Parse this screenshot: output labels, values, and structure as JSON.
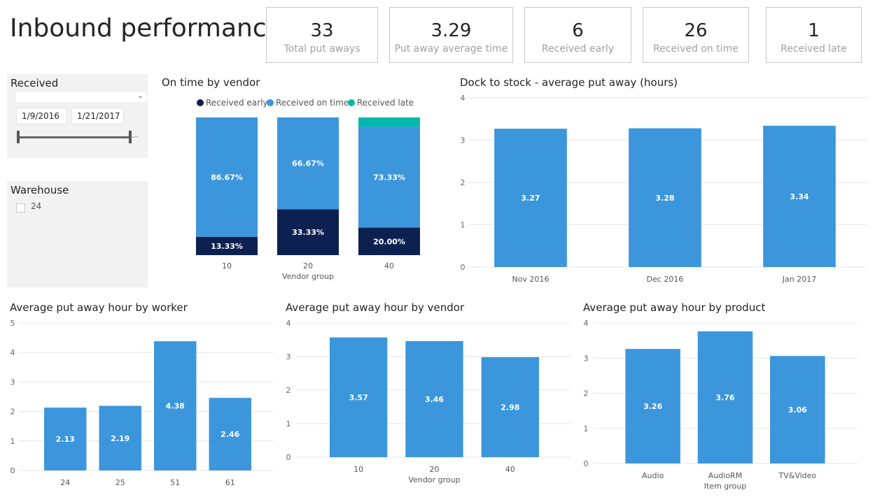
{
  "page": {
    "title": "Inbound performance"
  },
  "kpis": [
    {
      "value": "33",
      "label": "Total put aways"
    },
    {
      "value": "3.29",
      "label": "Put away average time"
    },
    {
      "value": "6",
      "label": "Received early"
    },
    {
      "value": "26",
      "label": "Received on time"
    },
    {
      "value": "1",
      "label": "Received late"
    }
  ],
  "slicers": {
    "received": {
      "title": "Received",
      "start_date": "1/9/2016",
      "end_date": "1/21/2017"
    },
    "warehouse": {
      "title": "Warehouse",
      "option": "24"
    }
  },
  "colors": {
    "bar": "#3c96dc",
    "early": "#0d2150",
    "on_time": "#3c96dc",
    "late": "#01b8aa"
  },
  "chart_data": [
    {
      "id": "on-time-by-vendor",
      "type": "bar",
      "stacked": true,
      "percent": true,
      "title": "On time by vendor",
      "xlabel": "Vendor group",
      "categories": [
        "10",
        "20",
        "40"
      ],
      "series": [
        {
          "name": "Received early",
          "values": [
            13.33,
            33.33,
            20.0
          ],
          "labels": [
            "13.33%",
            "33.33%",
            "20.00%"
          ]
        },
        {
          "name": "Received on time",
          "values": [
            86.67,
            66.67,
            73.33
          ],
          "labels": [
            "86.67%",
            "66.67%",
            "73.33%"
          ]
        },
        {
          "name": "Received late",
          "values": [
            0,
            0,
            6.67
          ],
          "labels": [
            "",
            "",
            ""
          ]
        }
      ],
      "legend": "top"
    },
    {
      "id": "dock-to-stock",
      "type": "bar",
      "title": "Dock to stock - average put away (hours)",
      "xlabel": "",
      "categories": [
        "Nov 2016",
        "Dec 2016",
        "Jan 2017"
      ],
      "values": [
        3.27,
        3.28,
        3.34
      ],
      "labels": [
        "3.27",
        "3.28",
        "3.34"
      ],
      "ylim": [
        0,
        4
      ],
      "yticks": [
        "0",
        "1",
        "2",
        "3",
        "4"
      ]
    },
    {
      "id": "by-worker",
      "type": "bar",
      "title": "Average put away hour by worker",
      "xlabel": "",
      "categories": [
        "24",
        "25",
        "51",
        "61"
      ],
      "values": [
        2.13,
        2.19,
        4.38,
        2.46
      ],
      "labels": [
        "2.13",
        "2.19",
        "4.38",
        "2.46"
      ],
      "ylim": [
        0,
        5
      ],
      "yticks": [
        "0",
        "1",
        "2",
        "3",
        "4",
        "5"
      ]
    },
    {
      "id": "by-vendor",
      "type": "bar",
      "title": "Average put away hour by vendor",
      "xlabel": "Vendor group",
      "categories": [
        "10",
        "20",
        "40"
      ],
      "values": [
        3.57,
        3.46,
        2.98
      ],
      "labels": [
        "3.57",
        "3.46",
        "2.98"
      ],
      "ylim": [
        0,
        4
      ],
      "yticks": [
        "0",
        "1",
        "2",
        "3",
        "4"
      ]
    },
    {
      "id": "by-product",
      "type": "bar",
      "title": "Average put away hour by product",
      "xlabel": "Item group",
      "categories": [
        "Audio",
        "AudioRM",
        "TV&Video"
      ],
      "values": [
        3.26,
        3.76,
        3.06
      ],
      "labels": [
        "3.26",
        "3.76",
        "3.06"
      ],
      "ylim": [
        0,
        4
      ],
      "yticks": [
        "0",
        "1",
        "2",
        "3",
        "4"
      ]
    }
  ]
}
